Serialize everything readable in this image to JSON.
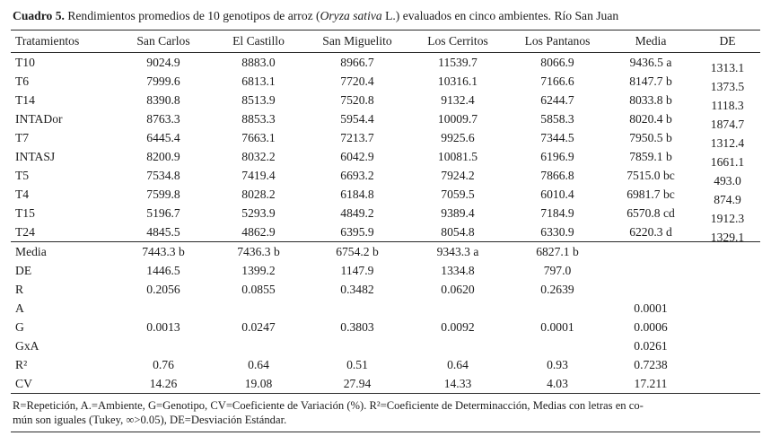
{
  "caption": {
    "label": "Cuadro 5.",
    "text1": " Rendimientos promedios de 10 genotipos de arroz (",
    "species": "Oryza sativa",
    "text2": " L.) evaluados en cinco ambientes. Río San Juan"
  },
  "table": {
    "columns": [
      "Tratamientos",
      "San Carlos",
      "El Castillo",
      "San Miguelito",
      "Los Cerritos",
      "Los Pantanos",
      "Media",
      "DE"
    ],
    "genotype_rows": [
      [
        "T10",
        "9024.9",
        "8883.0",
        "8966.7",
        "11539.7",
        "8066.9",
        "9436.5  a",
        "1313.1"
      ],
      [
        "T6",
        "7999.6",
        "6813.1",
        "7720.4",
        "10316.1",
        "7166.6",
        "8147.7  b",
        "1373.5"
      ],
      [
        "T14",
        "8390.8",
        "8513.9",
        "7520.8",
        "9132.4",
        "6244.7",
        "8033.8  b",
        "1118.3"
      ],
      [
        "INTADor",
        "8763.3",
        "8853.3",
        "5954.4",
        "10009.7",
        "5858.3",
        "8020.4  b",
        "1874.7"
      ],
      [
        "T7",
        "6445.4",
        "7663.1",
        "7213.7",
        "9925.6",
        "7344.5",
        "7950.5  b",
        "1312.4"
      ],
      [
        "INTASJ",
        "8200.9",
        "8032.2",
        "6042.9",
        "10081.5",
        "6196.9",
        "7859.1  b",
        "1661.1"
      ],
      [
        "T5",
        "7534.8",
        "7419.4",
        "6693.2",
        "7924.2",
        "7866.8",
        "7515.0 bc",
        "493.0"
      ],
      [
        "T4",
        "7599.8",
        "8028.2",
        "6184.8",
        "7059.5",
        "6010.4",
        "6981.7 bc",
        "874.9"
      ],
      [
        "T15",
        "5196.7",
        "5293.9",
        "4849.2",
        "9389.4",
        "7184.9",
        "6570.8 cd",
        "1912.3"
      ],
      [
        "T24",
        "4845.5",
        "4862.9",
        "6395.9",
        "8054.8",
        "6330.9",
        "6220.3  d",
        "1329.1"
      ]
    ],
    "stat_rows": [
      [
        "Media",
        "7443.3 b",
        "7436.3 b",
        "6754.2 b",
        "9343.3 a",
        "6827.1 b",
        "",
        ""
      ],
      [
        "DE",
        "1446.5",
        "1399.2",
        "1147.9",
        "1334.8",
        "797.0",
        "",
        ""
      ],
      [
        "R",
        "0.2056",
        "0.0855",
        "0.3482",
        "0.0620",
        "0.2639",
        "",
        ""
      ],
      [
        "A",
        "",
        "",
        "",
        "",
        "",
        "0.0001",
        ""
      ],
      [
        "G",
        "0.0013",
        "0.0247",
        "0.3803",
        "0.0092",
        "0.0001",
        "0.0006",
        ""
      ],
      [
        "GxA",
        "",
        "",
        "",
        "",
        "",
        "0.0261",
        ""
      ],
      [
        "R²",
        "0.76",
        "0.64",
        "0.51",
        "0.64",
        "0.93",
        "0.7238",
        ""
      ],
      [
        "CV",
        "14.26",
        "19.08",
        "27.94",
        "14.33",
        "4.03",
        "17.211",
        ""
      ]
    ]
  },
  "footnote": {
    "line1": "R=Repetición, A.=Ambiente, G=Genotipo, CV=Coeficiente de Variación (%). R²=Coeficiente de Determinacción, Medias con letras en co-",
    "line2": "mún son iguales (Tukey, ∞>0.05), DE=Desviación Estándar."
  }
}
